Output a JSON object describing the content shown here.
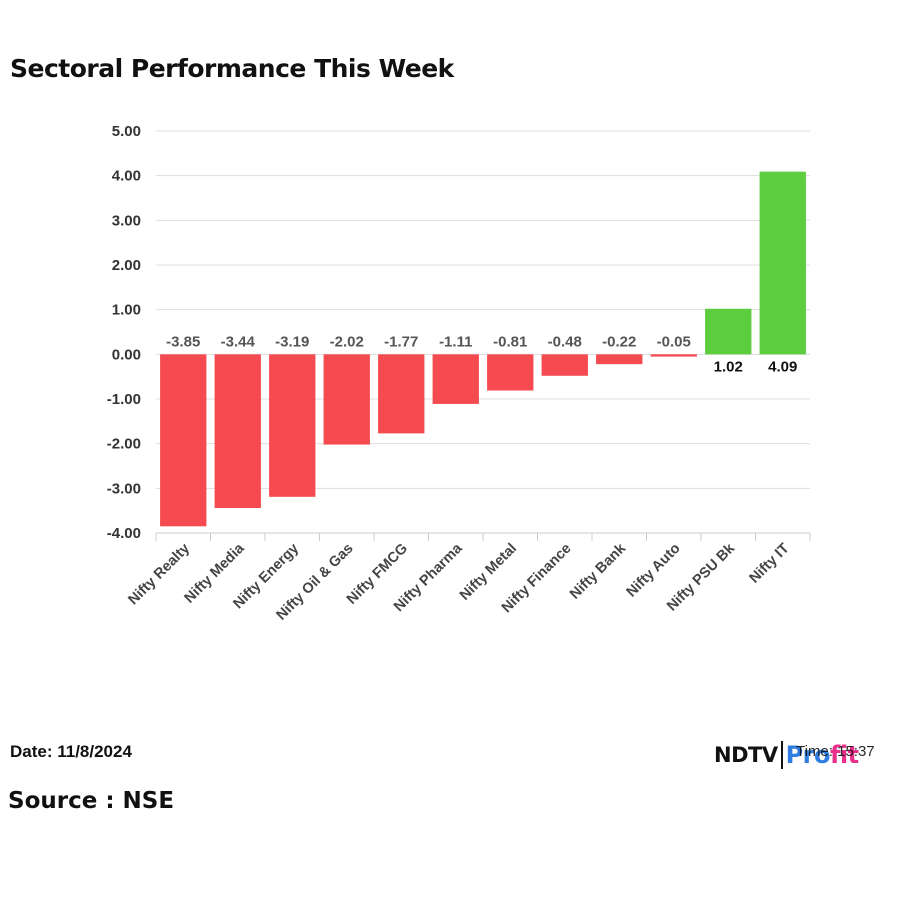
{
  "header": {
    "title": "Sectoral Performance This Week"
  },
  "footer": {
    "date": "Date: 11/8/2024",
    "source": "Source : NSE"
  },
  "logo": {
    "brand": "NDTV",
    "product": "Profit",
    "time_overlay": "Time: 15:37"
  },
  "colors": {
    "negative": "#f44a50",
    "positive": "#5ccd3f",
    "grid": "#dddddd",
    "negative_label": "#555555",
    "positive_label": "#111111"
  },
  "chart_data": {
    "type": "bar",
    "title": "Sectoral Performance This Week",
    "categories": [
      "Nifty Realty",
      "Nifty Media",
      "Nifty Energy",
      "Nifty Oil & Gas",
      "Nifty FMCG",
      "Nifty Pharma",
      "Nifty Metal",
      "Nifty Finance",
      "Nifty Bank",
      "Nifty Auto",
      "Nifty PSU Bk",
      "Nifty IT"
    ],
    "values": [
      -3.85,
      -3.44,
      -3.19,
      -2.02,
      -1.77,
      -1.11,
      -0.81,
      -0.48,
      -0.22,
      -0.05,
      1.02,
      4.09
    ],
    "value_labels": [
      "-3.85",
      "-3.44",
      "-3.19",
      "-2.02",
      "-1.77",
      "-1.11",
      "-0.81",
      "-0.48",
      "-0.22",
      "-0.05",
      "1.02",
      "4.09"
    ],
    "yticks": [
      "5.00",
      "4.00",
      "3.00",
      "2.00",
      "1.00",
      "0.00",
      "-1.00",
      "-2.00",
      "-3.00",
      "-4.00"
    ],
    "ylim": [
      -4,
      5
    ],
    "xlabel": "",
    "ylabel": "",
    "grid": true,
    "legend": "none"
  }
}
